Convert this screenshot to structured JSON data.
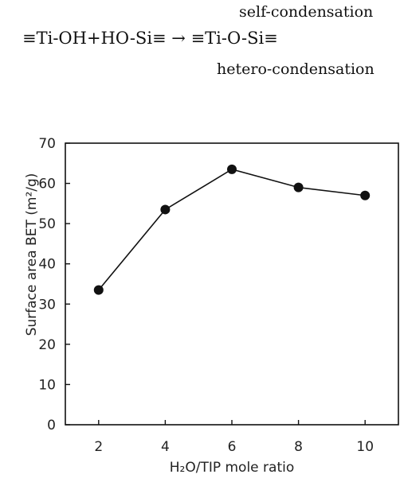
{
  "equation": {
    "top_label": "self-condensation",
    "reaction": "≡Ti-OH+HO-Si≡ → ≡Ti-O-Si≡",
    "bottom_label": "hetero-condensation"
  },
  "chart_data": {
    "type": "line",
    "title": "",
    "xlabel": "H₂O/TIP mole ratio",
    "ylabel": "Surface area BET (m²/g)",
    "x": [
      2,
      4,
      6,
      8,
      10
    ],
    "series": [
      {
        "values": [
          33.5,
          53.5,
          63.5,
          59,
          57
        ]
      }
    ],
    "xlim": [
      1,
      11
    ],
    "ylim": [
      0,
      70
    ],
    "xticks": [
      2,
      4,
      6,
      8,
      10
    ],
    "yticks": [
      0,
      10,
      20,
      30,
      40,
      50,
      60,
      70
    ],
    "grid": false,
    "marker": "filled-circle",
    "colors": {
      "line": "#111111",
      "marker": "#111111"
    }
  }
}
